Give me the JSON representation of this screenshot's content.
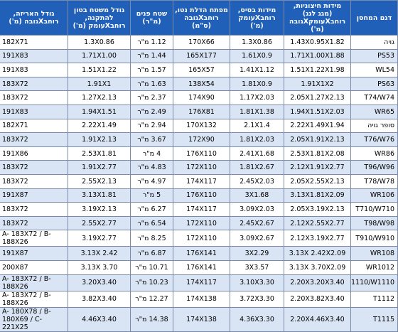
{
  "table": {
    "header": [
      "דגם המחסן",
      "מידות חיצוניות, (מגג לגג) רוחבXעומקXגובה (מ')",
      "מידות בסיס, רוחבXעומק (מ')",
      "מפתח הדלת נטו, רוחבXגובה (ס\"מ)",
      "שטח פנים (מ\"ר)",
      "גודל משטח בטון להתקנה, רוחבXעומק (מ')",
      "גודל האריזה, רוחבXגובה (מ')"
    ],
    "rows": [
      [
        "גויה",
        "1.43X0.95X1.82",
        "1.3X0.86",
        "170X66",
        "1.12 מ\"ר",
        "1.3X0.86",
        "182X71"
      ],
      [
        "PS53",
        "1.71X1.00X1.88",
        "1.61X0.9",
        "165X177",
        "1.44 מ\"ר",
        "1.71X1.00",
        "191X83"
      ],
      [
        "WL54",
        "1.51X1.22X1.98",
        "1.41X1.12",
        "165X57",
        "1.57 מ\"ר",
        "1.51X1.22",
        "191X83"
      ],
      [
        "PS63",
        "1.91X1X2",
        "1.81X0.9",
        "138X54",
        "1.63 מ\"ר",
        "1.91X1",
        "183X72"
      ],
      [
        "T74/W74",
        "2.05X1.27X2.13",
        "1.17X2.03",
        "174X90",
        "2.37 מ\"ר",
        "1.27X2.13",
        "183X72"
      ],
      [
        "WR65",
        "1.94X1.51X2.03",
        "1.81X1.38",
        "176X81",
        "2.49 מ\"ר",
        "1.94X1.51",
        "191X83"
      ],
      [
        "סופר גויה",
        "2.22X1.49X1.94",
        "2.1X1.4",
        "170X132",
        "2.94 מ\"ר",
        "2.22X1.49",
        "182X71"
      ],
      [
        "T76/W76",
        "2.05X1.91X2.13",
        "1.81X2.03",
        "172X90",
        "3.67 מ\"ר",
        "1.91X2.13",
        "183X72"
      ],
      [
        "WR86",
        "2.53X1.81X2.08",
        "2.41X1.68",
        "176X110",
        "4 מ\"ר",
        "2.53X1.81",
        "191X86"
      ],
      [
        "T96/W96",
        "2.12X1.91X2.77",
        "1.81X2.67",
        "172X110",
        "4.83 מ\"ר",
        "1.91X2.77",
        "183X72"
      ],
      [
        "T78/W78",
        "2.05X2.55X2.13",
        "2.45X2.03",
        "174X117",
        "4.97 מ\"ר",
        "2.55X2.13",
        "183X72"
      ],
      [
        "WR106",
        "3.13X1.81X2.09",
        "3X1.68",
        "176X110",
        "5 מ\"ר",
        "3.13X1.81",
        "191X87"
      ],
      [
        "T710/W710",
        "2.05X3.19X2.13",
        "3.09X2.03",
        "174X117",
        "6.27 מ\"ר",
        "3.19X2.13",
        "183X72"
      ],
      [
        "T98/W98",
        "2.12X2.55X2.77",
        "2.45X2.67",
        "172X110",
        "6.54 מ\"ר",
        "2.55X2.77",
        "183X72"
      ],
      [
        "T910/W910",
        "2.12X3.19X2.77",
        "3.09X2.67",
        "172X110",
        "8.25 מ\"ר",
        "3.19X2.77",
        "A- 183X72 / B-188X26"
      ],
      [
        "WR108",
        "3.13X 2.42X2.09",
        "3X2.29",
        "176X141",
        "6.87 מ\"ר",
        "3.13X 2.42",
        "191X87"
      ],
      [
        "WR1012",
        "3.13X 3.70X2.09",
        "3X3.57",
        "176X141",
        "10.71 מ\"ר",
        "3.13X 3.70",
        "200X87"
      ],
      [
        "T1110/W1110",
        "2.20X3.20X3.40",
        "3.10X3.30",
        "174X117",
        "10.23 מ\"ר",
        "3.20X3.40",
        "A- 183X72 / B-188X26"
      ],
      [
        "T1112",
        "2.20X3.82X3.40",
        "3.72X3.30",
        "174X138",
        "12.27 מ\"ר",
        "3.82X3.40",
        "A- 183X72 / B-188X26"
      ],
      [
        "T1115",
        "2.20X4.46X3.40",
        "4.36X3.30",
        "174X138",
        "14.38 מ\"ר",
        "4.46X3.40",
        "A- 180X78 / B-180X69 / C- 221X25"
      ]
    ]
  }
}
